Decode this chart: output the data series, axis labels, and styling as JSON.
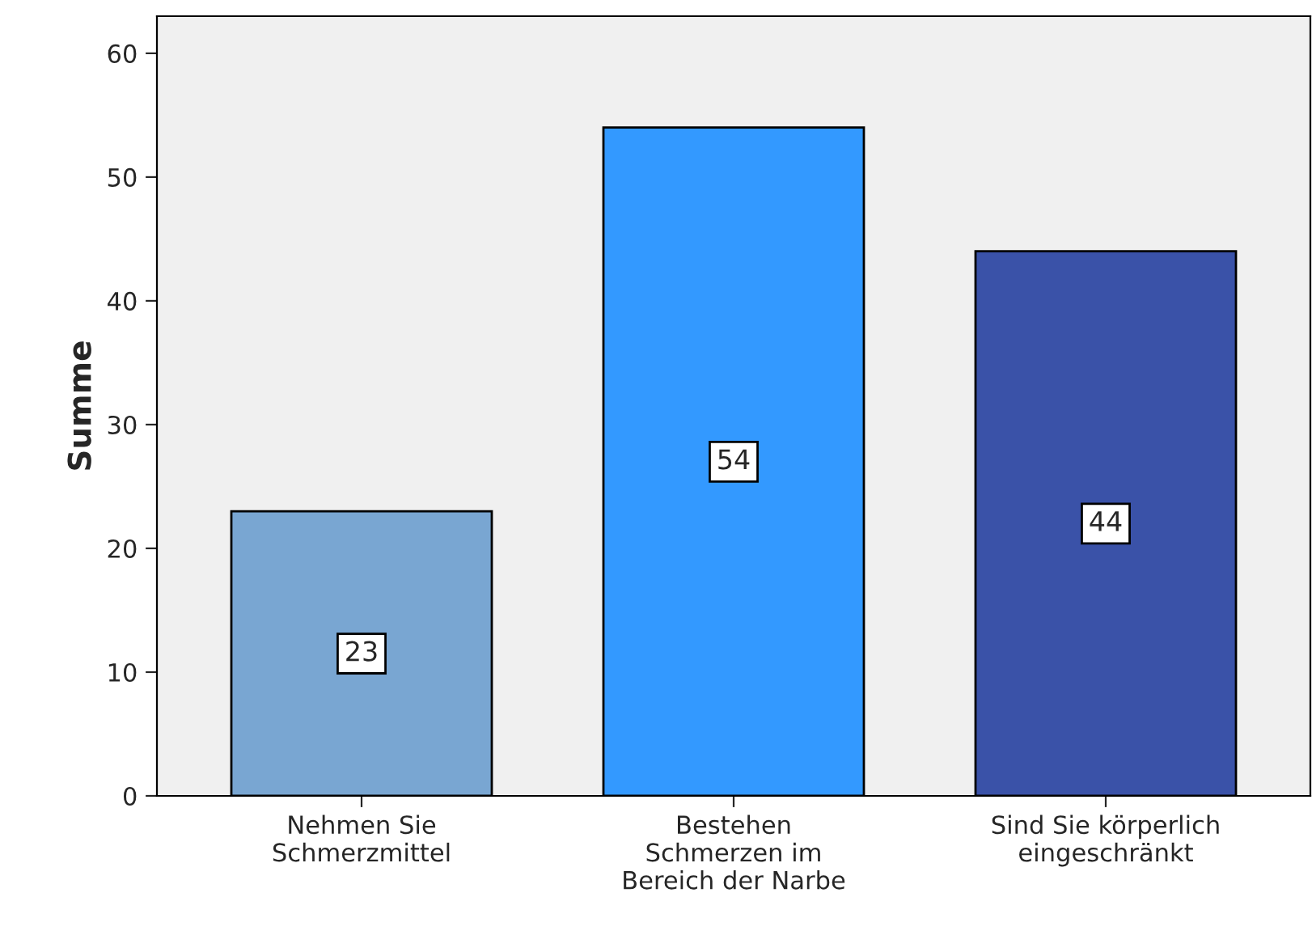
{
  "chart_data": {
    "type": "bar",
    "ylabel": "Summe",
    "categories": [
      "Nehmen Sie\nSchmerzmittel",
      "Bestehen\nSchmerzen im\nBereich der Narbe",
      "Sind Sie körperlich\neingeschränkt"
    ],
    "values": [
      23,
      54,
      44
    ],
    "colors": [
      "#79a6d2",
      "#3399ff",
      "#3a52a8"
    ],
    "ylim": [
      0,
      63
    ],
    "yticks": [
      0,
      10,
      20,
      30,
      40,
      50,
      60
    ],
    "grid": false,
    "data_labels": true
  }
}
